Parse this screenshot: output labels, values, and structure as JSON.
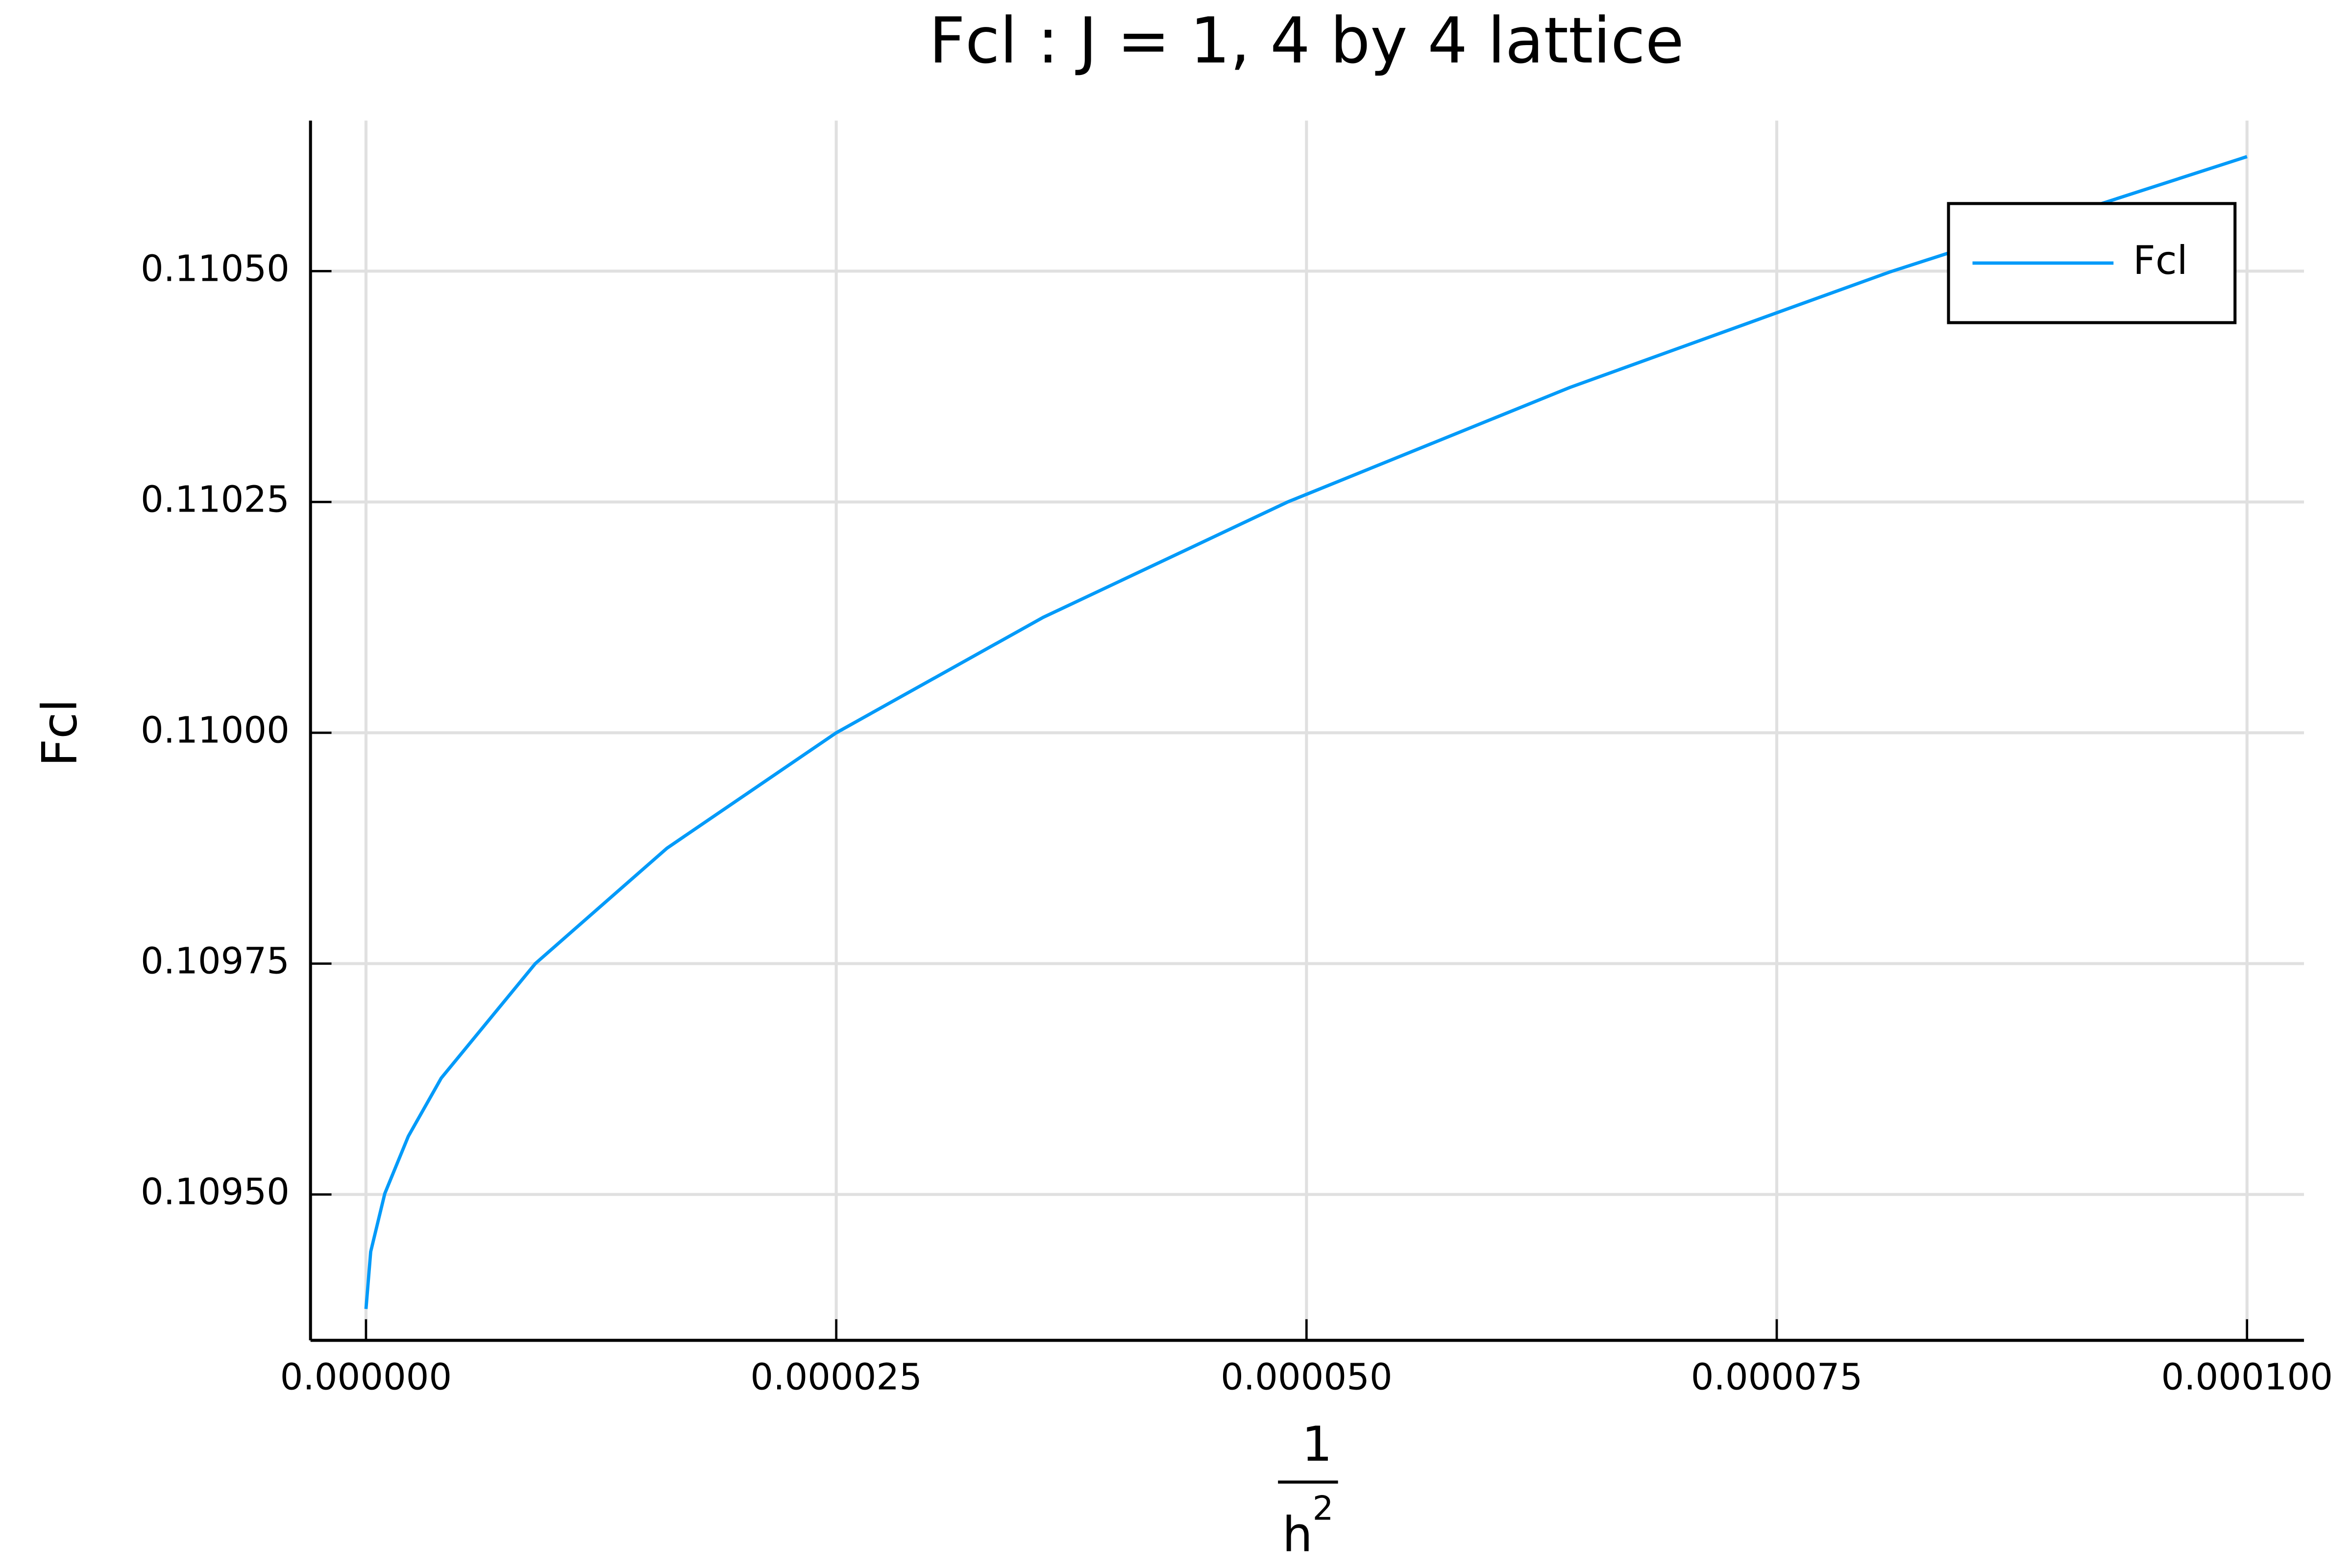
{
  "chart_data": {
    "type": "line",
    "title": "Fcl : J = 1, 4 by 4 lattice",
    "ylabel": "Fcl",
    "xlabel": {
      "numerator": "1",
      "denominator": "h",
      "superscript": "2"
    },
    "x": [
      0,
      2.5e-07,
      1e-06,
      2.25e-06,
      4e-06,
      9e-06,
      1.6e-05,
      2.5e-05,
      3.6e-05,
      4.9e-05,
      6.4e-05,
      8.1e-05,
      0.0001
    ],
    "series": [
      {
        "name": "Fcl",
        "color": "#009af9",
        "values": [
          0.109376,
          0.109438,
          0.109501,
          0.109563,
          0.109626,
          0.10975,
          0.109875,
          0.11,
          0.110125,
          0.11025,
          0.110374,
          0.110499,
          0.110624
        ]
      }
    ],
    "xlim": [
      -2.95e-06,
      0.00010303
    ],
    "ylim": [
      0.109342,
      0.110663
    ],
    "xticks": [
      {
        "value": 0,
        "label": "0.000000"
      },
      {
        "value": 2.5e-05,
        "label": "0.000025"
      },
      {
        "value": 5e-05,
        "label": "0.000050"
      },
      {
        "value": 7.5e-05,
        "label": "0.000075"
      },
      {
        "value": 0.0001,
        "label": "0.000100"
      }
    ],
    "yticks": [
      {
        "value": 0.1095,
        "label": "0.10950"
      },
      {
        "value": 0.10975,
        "label": "0.10975"
      },
      {
        "value": 0.11,
        "label": "0.11000"
      },
      {
        "value": 0.11025,
        "label": "0.11025"
      },
      {
        "value": 0.1105,
        "label": "0.11050"
      }
    ],
    "grid": true,
    "legend": "upper-right"
  }
}
